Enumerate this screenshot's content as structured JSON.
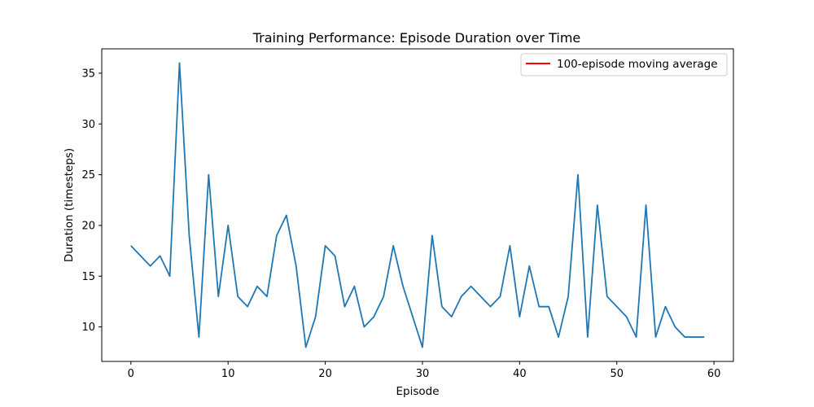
{
  "chart_data": {
    "type": "line",
    "title": "Training Performance: Episode Duration over Time",
    "xlabel": "Episode",
    "ylabel": "Duration (timesteps)",
    "xlim": [
      -3,
      62
    ],
    "ylim": [
      6.6,
      37.4
    ],
    "xticks": [
      0,
      10,
      20,
      30,
      40,
      50,
      60
    ],
    "yticks": [
      10,
      15,
      20,
      25,
      30,
      35
    ],
    "grid": false,
    "legend": {
      "position": "top-right",
      "entries": [
        "100-episode moving average"
      ]
    },
    "series": [
      {
        "color": "#1f77b4",
        "x": [
          0,
          1,
          2,
          3,
          4,
          5,
          6,
          7,
          8,
          9,
          10,
          11,
          12,
          13,
          14,
          15,
          16,
          17,
          18,
          19,
          20,
          21,
          22,
          23,
          24,
          25,
          26,
          27,
          28,
          29,
          30,
          31,
          32,
          33,
          34,
          35,
          36,
          37,
          38,
          39,
          40,
          41,
          42,
          43,
          44,
          45,
          46,
          47,
          48,
          49,
          50,
          51,
          52,
          53,
          54,
          55,
          56,
          57,
          58,
          59
        ],
        "y": [
          18,
          17,
          16,
          17,
          15,
          36,
          19,
          9,
          25,
          13,
          20,
          13,
          12,
          14,
          13,
          19,
          21,
          16,
          8,
          11,
          18,
          17,
          12,
          14,
          10,
          11,
          13,
          18,
          14,
          11,
          8,
          19,
          12,
          11,
          13,
          14,
          13,
          12,
          13,
          18,
          11,
          16,
          12,
          12,
          9,
          13,
          25,
          9,
          22,
          13,
          12,
          11,
          9,
          22,
          9,
          12,
          10,
          9,
          9,
          9
        ]
      },
      {
        "name": "100-episode moving average",
        "color": "#ff0000",
        "x": [],
        "y": []
      }
    ]
  }
}
